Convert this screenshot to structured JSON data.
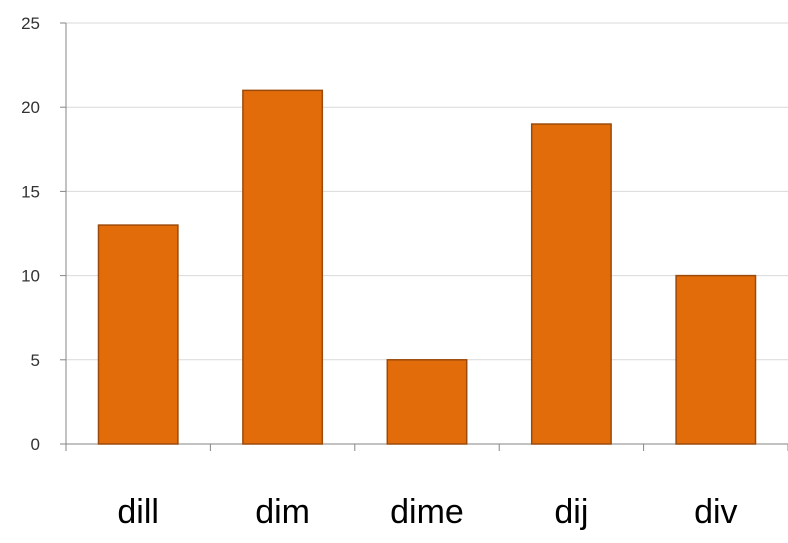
{
  "chart_data": {
    "type": "bar",
    "categories": [
      "dill",
      "dim",
      "dime",
      "dij",
      "div"
    ],
    "values": [
      13,
      21,
      5,
      19,
      10
    ],
    "ylim": [
      0,
      25
    ],
    "yticks": [
      0,
      5,
      10,
      15,
      20,
      25
    ],
    "grid": true,
    "legend": "none",
    "colors": {
      "bar_fill": "#E36C0A",
      "bar_stroke": "#9C4A0A",
      "grid": "#D9D9D9",
      "axis": "#868686",
      "tick_text": "#333333"
    }
  }
}
